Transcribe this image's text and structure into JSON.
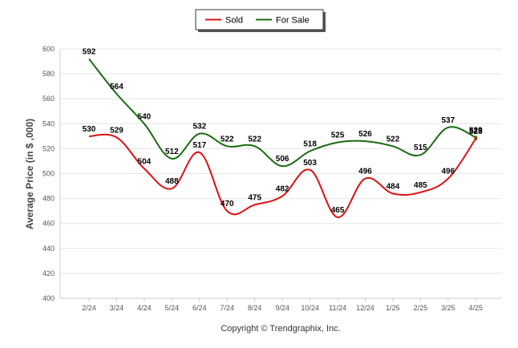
{
  "chart_data": {
    "type": "line",
    "categories": [
      "2/24",
      "3/24",
      "4/24",
      "5/24",
      "6/24",
      "7/24",
      "8/24",
      "9/24",
      "10/24",
      "11/24",
      "12/24",
      "1/25",
      "2/25",
      "3/25",
      "4/25"
    ],
    "series": [
      {
        "name": "Sold",
        "color": "#dd1111",
        "values": [
          530,
          529,
          504,
          488,
          517,
          470,
          475,
          482,
          503,
          465,
          496,
          484,
          485,
          496,
          528
        ]
      },
      {
        "name": "For Sale",
        "color": "#1a6b10",
        "values": [
          592,
          564,
          540,
          512,
          532,
          522,
          522,
          506,
          518,
          525,
          526,
          522,
          515,
          537,
          529
        ]
      }
    ],
    "ylabel": "Average Price (in $ ,000)",
    "ylim": [
      400,
      600
    ],
    "yticks": [
      400,
      420,
      440,
      460,
      480,
      500,
      520,
      540,
      560,
      580,
      600
    ],
    "grid": true,
    "legend_position": "top-center",
    "footer": "Copyright © Trendgraphix, Inc."
  }
}
